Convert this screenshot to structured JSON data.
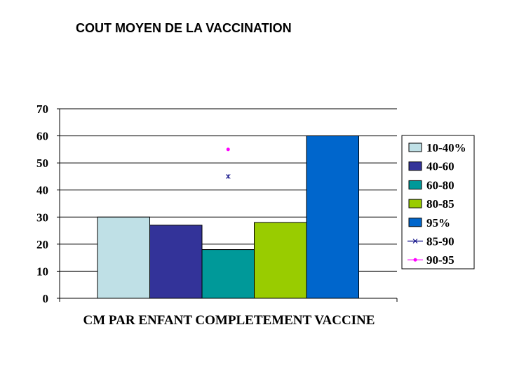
{
  "title": "COUT MOYEN DE LA VACCINATION",
  "chart_data": {
    "type": "bar",
    "title": "COUT MOYEN DE LA VACCINATION",
    "xlabel": "CM PAR ENFANT COMPLETEMENT VACCINE",
    "ylabel": "",
    "ylim": [
      0,
      70
    ],
    "yticks": [
      "0",
      "10",
      "20",
      "30",
      "40",
      "50",
      "60",
      "70"
    ],
    "grid": true,
    "legend_position": "right",
    "categories": [
      "CM PAR ENFANT COMPLETEMENT VACCINE"
    ],
    "series": [
      {
        "name": "10-40%",
        "kind": "bar",
        "values": [
          30
        ],
        "color": "#BFE0E6"
      },
      {
        "name": "40-60",
        "kind": "bar",
        "values": [
          27
        ],
        "color": "#333399"
      },
      {
        "name": "60-80",
        "kind": "bar",
        "values": [
          18
        ],
        "color": "#009999"
      },
      {
        "name": "80-85",
        "kind": "bar",
        "values": [
          28
        ],
        "color": "#99CC00"
      },
      {
        "name": "95%",
        "kind": "bar",
        "values": [
          60
        ],
        "color": "#0066CC"
      },
      {
        "name": "85-90",
        "kind": "point",
        "marker": "star",
        "values": [
          45
        ],
        "color": "#000080"
      },
      {
        "name": "90-95",
        "kind": "point",
        "marker": "circle",
        "values": [
          55
        ],
        "color": "#FF00FF"
      }
    ]
  }
}
